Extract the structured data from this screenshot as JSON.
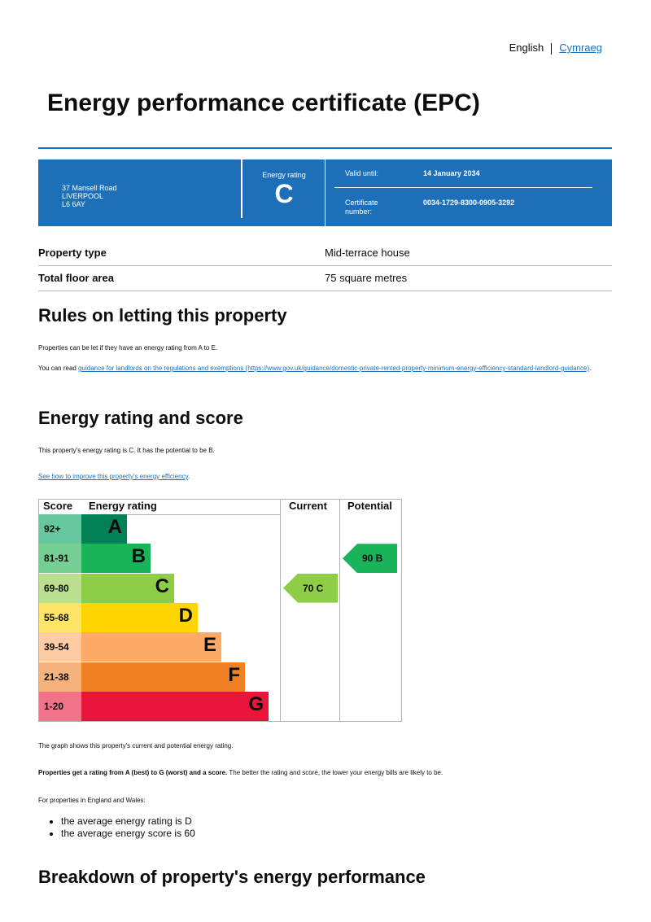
{
  "language": {
    "current": "English",
    "alternate": "Cymraeg"
  },
  "title": "Energy performance certificate (EPC)",
  "banner": {
    "address": [
      "37 Mansell Road",
      "LIVERPOOL",
      "L6 6AY"
    ],
    "energy_rating_label": "Energy rating",
    "energy_rating": "C",
    "valid_until_label": "Valid until:",
    "valid_until": "14 January 2034",
    "certificate_label": "Certificate number:",
    "certificate_number": "0034-1729-8300-0905-3292"
  },
  "property": [
    {
      "key": "Property type",
      "value": "Mid-terrace house"
    },
    {
      "key": "Total floor area",
      "value": "75 square metres"
    }
  ],
  "letting": {
    "heading": "Rules on letting this property",
    "p1": "Properties can be let if they have an energy rating from A to E.",
    "p2_prefix": "You can read ",
    "p2_link": "guidance for landlords on the regulations and exemptions (https://www.gov.uk/guidance/domestic-private-rented-property-minimum-energy-efficiency-standard-landlord-guidance)",
    "p2_suffix": "."
  },
  "rating": {
    "heading": "Energy rating and score",
    "p1": "This property's energy rating is C. It has the potential to be B.",
    "link": "See how to improve this property's energy efficiency",
    "link_suffix": "."
  },
  "chart_data": {
    "type": "bar",
    "columns": [
      "Score",
      "Energy rating",
      "Current",
      "Potential"
    ],
    "bands": [
      {
        "score": "92+",
        "letter": "A",
        "color": "#008054",
        "tint": "#64c7a0"
      },
      {
        "score": "81-91",
        "letter": "B",
        "color": "#19b459",
        "tint": "#76cf92"
      },
      {
        "score": "69-80",
        "letter": "C",
        "color": "#8dce46",
        "tint": "#badf8e"
      },
      {
        "score": "55-68",
        "letter": "D",
        "color": "#ffd500",
        "tint": "#ffe566"
      },
      {
        "score": "39-54",
        "letter": "E",
        "color": "#fcaa65",
        "tint": "#fdcca2"
      },
      {
        "score": "21-38",
        "letter": "F",
        "color": "#ef8023",
        "tint": "#f5b37b"
      },
      {
        "score": "1-20",
        "letter": "G",
        "color": "#e9153b",
        "tint": "#f27389"
      }
    ],
    "current": {
      "score": 70,
      "letter": "C",
      "label": "70  C"
    },
    "potential": {
      "score": 90,
      "letter": "B",
      "label": "90  B"
    }
  },
  "after": {
    "p1": "The graph shows this property's current and potential energy rating.",
    "p2_bold": "Properties get a rating from A (best) to G (worst) and a score.",
    "p2_rest": " The better the rating and score, the lower your energy bills are likely to be.",
    "p3": "For properties in England and Wales:",
    "bullets": [
      "the average energy rating is D",
      "the average energy score is 60"
    ]
  },
  "breakdown_heading": "Breakdown of property's energy performance"
}
